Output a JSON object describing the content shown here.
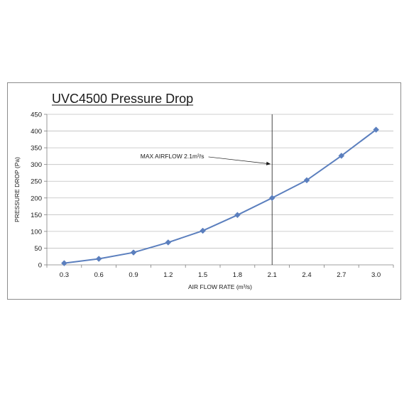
{
  "chart_data": {
    "type": "line",
    "title": "UVC4500 Pressure Drop",
    "xlabel": "AIR FLOW RATE (m³/s)",
    "ylabel": "PRESSURE DROP (Pa)",
    "x": [
      0.3,
      0.6,
      0.9,
      1.2,
      1.5,
      1.8,
      2.1,
      2.4,
      2.7,
      3.0
    ],
    "x_tick_labels": [
      "0.3",
      "0.6",
      "0.9",
      "1.2",
      "1.5",
      "1.8",
      "2.1",
      "2.4",
      "2.7",
      "3.0"
    ],
    "y_ticks": [
      0,
      50,
      100,
      150,
      200,
      250,
      300,
      350,
      400,
      450
    ],
    "ylim": [
      0,
      450
    ],
    "grid": "horizontal",
    "legend": "none",
    "series": [
      {
        "values": [
          5,
          18,
          37,
          67,
          102,
          149,
          200,
          253,
          326,
          404
        ],
        "color": "#5b7fbe",
        "marker": "diamond"
      }
    ],
    "annotation": {
      "text": "MAX AIRFLOW 2.1m³/s",
      "x": 2.1,
      "arrow_target_y": 310
    },
    "vertical_line_x": 2.1
  }
}
